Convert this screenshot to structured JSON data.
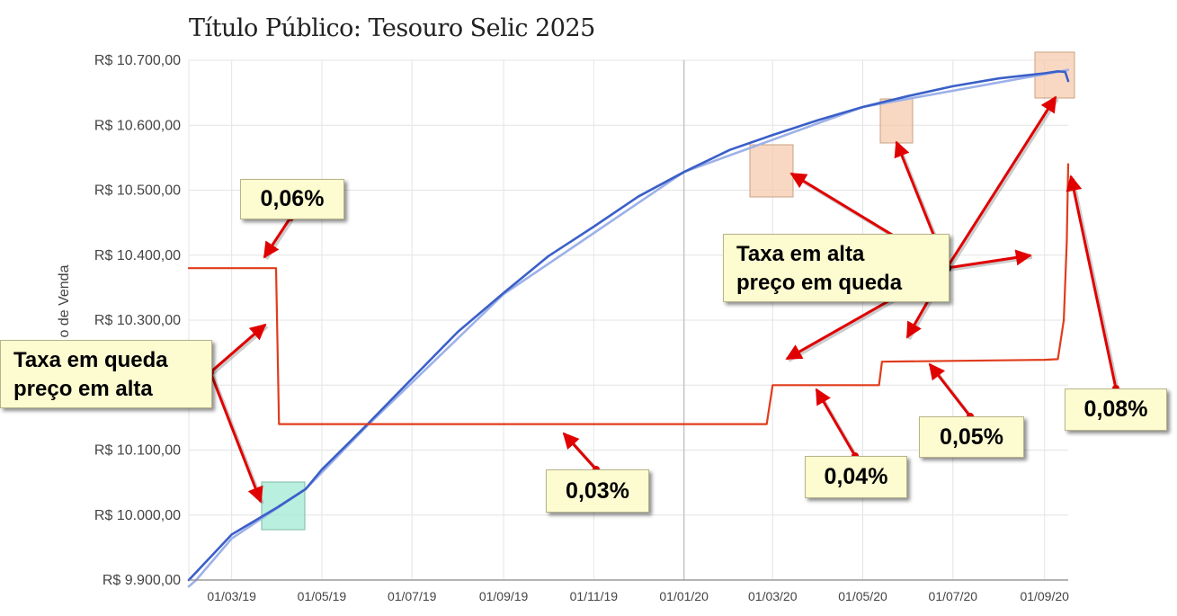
{
  "chart_data": {
    "type": "line",
    "title": "Título Público: Tesouro Selic 2025",
    "ylabel": "Preço de Venda",
    "ylabel_visible": "o de Venda",
    "ylim": [
      9900,
      10700
    ],
    "ytick_labels": [
      "R$ 9.900,00",
      "R$ 10.000,00",
      "R$ 10.100,00",
      "R$ 10.200,00",
      "R$ 10.300,00",
      "R$ 10.400,00",
      "R$ 10.500,00",
      "R$ 10.600,00",
      "R$ 10.700,00"
    ],
    "ytick_values": [
      9900,
      10000,
      10100,
      10200,
      10300,
      10400,
      10500,
      10600,
      10700
    ],
    "xtick_labels": [
      "01/03/19",
      "01/05/19",
      "01/07/19",
      "01/09/19",
      "01/11/19",
      "01/01/20",
      "01/03/20",
      "01/05/20",
      "01/07/20",
      "01/09/20"
    ],
    "xtick_dates": [
      "2019-03-01",
      "2019-05-01",
      "2019-07-01",
      "2019-09-01",
      "2019-11-01",
      "2020-01-01",
      "2020-03-01",
      "2020-05-01",
      "2020-07-01",
      "2020-09-01"
    ],
    "xlim": [
      "2019-01-31",
      "2020-09-17"
    ],
    "grid": true,
    "series": [
      {
        "x": [
          "2019-01-31",
          "2019-03-01",
          "2019-04-01",
          "2019-04-20",
          "2019-05-01",
          "2019-06-01",
          "2019-07-01",
          "2019-08-01",
          "2019-09-01",
          "2019-10-01",
          "2019-11-01",
          "2019-12-01",
          "2020-01-01",
          "2020-02-01",
          "2020-03-01",
          "2020-04-01",
          "2020-05-01",
          "2020-06-01",
          "2020-07-01",
          "2020-08-01",
          "2020-09-01",
          "2020-09-10",
          "2020-09-15",
          "2020-09-17"
        ],
        "values": [
          9900,
          9970,
          10012,
          10040,
          10070,
          10140,
          10210,
          10282,
          10342,
          10398,
          10444,
          10490,
          10528,
          10562,
          10585,
          10608,
          10628,
          10645,
          10660,
          10672,
          10680,
          10683,
          10682,
          10668
        ],
        "color": "#3a5fc8"
      },
      {
        "x": [
          "2019-01-31",
          "2019-02-05",
          "2019-03-01",
          "2019-04-20",
          "2019-06-01",
          "2019-09-01",
          "2020-01-01",
          "2020-05-01",
          "2020-09-17"
        ],
        "values": [
          9890,
          9900,
          9964,
          10040,
          10138,
          10340,
          10528,
          10628,
          10685
        ],
        "color": "#9db1e8"
      },
      {
        "x": [
          "2019-01-31",
          "2019-03-31",
          "2019-04-02",
          "2020-02-26",
          "2020-03-01",
          "2020-05-12",
          "2020-05-14",
          "2020-09-01",
          "2020-09-10",
          "2020-09-14",
          "2020-09-16",
          "2020-09-17"
        ],
        "values": [
          10380,
          10380,
          10140,
          10140,
          10200,
          10200,
          10236,
          10239,
          10240,
          10300,
          10420,
          10540
        ],
        "color": "#e03c1c"
      }
    ],
    "annotations": [
      {
        "text": "0,06%"
      },
      {
        "text": "0,03%"
      },
      {
        "text": "0,04%"
      },
      {
        "text": "0,05%"
      },
      {
        "text": "0,08%"
      },
      {
        "text": [
          "Taxa em queda",
          "preço em alta"
        ]
      },
      {
        "text": [
          "Taxa em alta",
          "preço em queda"
        ]
      }
    ]
  }
}
